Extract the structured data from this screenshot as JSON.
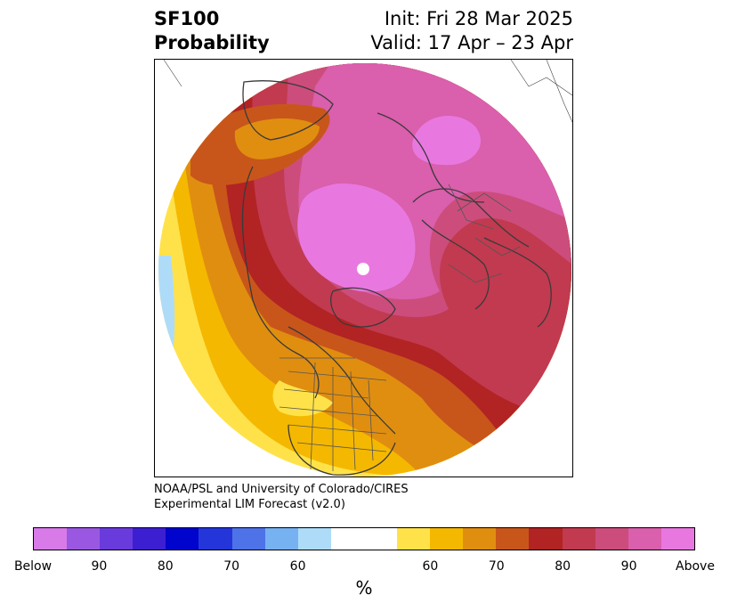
{
  "title": {
    "left_line1": "SF100",
    "left_line2": "Probability",
    "right_line1": "Init: Fri 28 Mar 2025",
    "right_line2": "Valid: 17 Apr – 23 Apr"
  },
  "credit": {
    "line1": "NOAA/PSL and University of Colorado/CIRES",
    "line2": "Experimental LIM Forecast (v2.0)"
  },
  "colorbar": {
    "colors": [
      "#d87ae8",
      "#9a58e2",
      "#6a3bdc",
      "#3d1fd2",
      "#0004cc",
      "#2436da",
      "#4e72e8",
      "#76b2f2",
      "#aedcf8",
      "#ffffff",
      "#ffffff",
      "#ffe24a",
      "#f5b800",
      "#e08e10",
      "#c8561a",
      "#b22324",
      "#c23a50",
      "#cc4d7c",
      "#da5fac",
      "#e878e0"
    ],
    "ticks": [
      "Below",
      "90",
      "80",
      "70",
      "60",
      "60",
      "70",
      "80",
      "90",
      "Above"
    ],
    "unit": "%"
  },
  "map": {
    "legend_above_color": "#e878e0",
    "legend_below_color": "#aedcf8"
  }
}
